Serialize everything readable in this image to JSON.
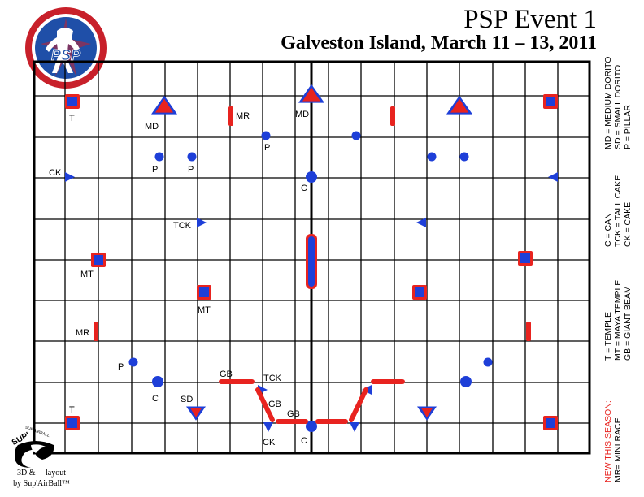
{
  "header": {
    "title": "PSP Event 1",
    "subtitle": "Galveston Island, March 11 – 13, 2011"
  },
  "logo": {
    "name": "PSP",
    "ring_text": "PAINTBALL SPORTS PROMOTIONS",
    "colors": {
      "red": "#c8202a",
      "blue": "#1f4fa8"
    }
  },
  "legend": {
    "col1": [
      "T = TEMPLE",
      "MT = MAYA TEMPLE",
      "GB = GIANT BEAM"
    ],
    "col2": [
      "C = CAN",
      "TCK = TALL CAKE",
      "CK = CAKE"
    ],
    "col3": [
      "MD = MEDIUM DORITO",
      "SD = SMALL DORITO",
      "P = PILLAR"
    ],
    "new_season_heading": "NEW THIS SEASON:",
    "new_season_item": "MR= MINI RACE"
  },
  "credit": {
    "line1": "3D &",
    "line1b": "layout",
    "line2": "by Sup'AirBall™",
    "brand": "SUP'AIRBALL"
  },
  "colors": {
    "bunker_red": "#e8231f",
    "bunker_blue": "#1e3fd8",
    "grid": "#000000"
  },
  "labels": {
    "t_top": "T",
    "md_left": "MD",
    "mr_top": "MR",
    "md_center": "MD",
    "p_mid": "P",
    "p_a": "P",
    "p_b": "P",
    "ck_left": "CK",
    "c_mid": "C",
    "tck_mid": "TCK",
    "mt_left": "MT",
    "mt_inner": "MT",
    "mr_left": "MR",
    "p_low": "P",
    "c_low": "C",
    "gb_1": "GB",
    "tck_low": "TCK",
    "sd": "SD",
    "gb_2": "GB",
    "gb_3": "GB",
    "t_bottom": "T",
    "ck_low": "CK",
    "c_bottom": "C"
  }
}
